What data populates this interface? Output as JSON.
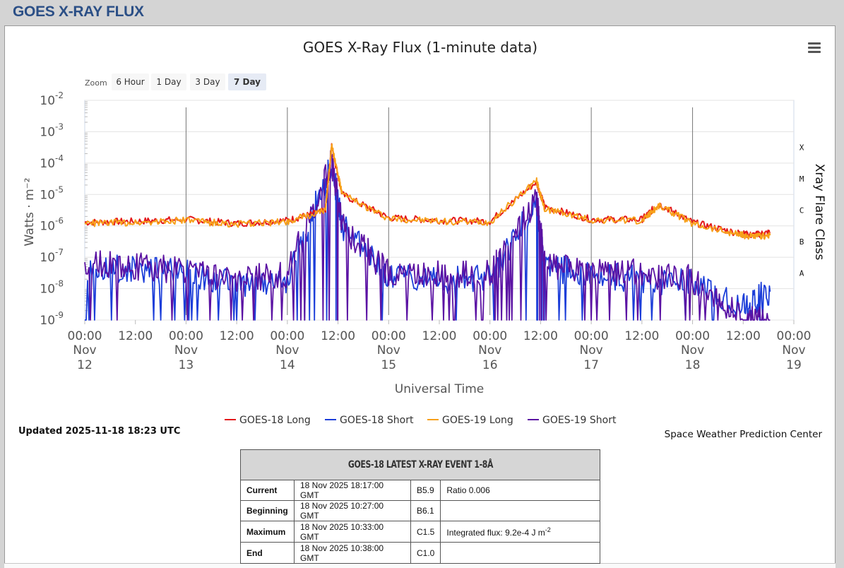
{
  "page": {
    "title": "GOES X-RAY FLUX"
  },
  "zoom": {
    "label": "Zoom",
    "buttons": [
      "6 Hour",
      "1 Day",
      "3 Day",
      "7 Day"
    ],
    "active": "7 Day"
  },
  "updated": "Updated 2025-11-18 18:23 UTC",
  "credit": "Space Weather Prediction Center",
  "colors": {
    "goes18_long": "#e3181b",
    "goes18_short": "#1c3ed9",
    "goes19_long": "#f7a01a",
    "goes19_short": "#5b12a3"
  },
  "chart_data": {
    "type": "line",
    "title": "GOES X-Ray Flux (1-minute data)",
    "xlabel": "Universal Time",
    "ylabel": "Watts · m⁻²",
    "y2label": "Xray Flare Class",
    "yscale": "log",
    "ylim": [
      1e-09,
      0.01
    ],
    "xlim": [
      "2025-11-12T00:00Z",
      "2025-11-19T00:00Z"
    ],
    "yticks": [
      {
        "base": "10",
        "exp": "-2"
      },
      {
        "base": "10",
        "exp": "-3"
      },
      {
        "base": "10",
        "exp": "-4"
      },
      {
        "base": "10",
        "exp": "-5"
      },
      {
        "base": "10",
        "exp": "-6"
      },
      {
        "base": "10",
        "exp": "-7"
      },
      {
        "base": "10",
        "exp": "-8"
      },
      {
        "base": "10",
        "exp": "-9"
      }
    ],
    "flare_classes": [
      "X",
      "M",
      "C",
      "B",
      "A"
    ],
    "xticks": [
      {
        "time": "00:00",
        "mon": "Nov",
        "day": "12"
      },
      {
        "time": "12:00",
        "mon": "",
        "day": ""
      },
      {
        "time": "00:00",
        "mon": "Nov",
        "day": "13"
      },
      {
        "time": "12:00",
        "mon": "",
        "day": ""
      },
      {
        "time": "00:00",
        "mon": "Nov",
        "day": "14"
      },
      {
        "time": "12:00",
        "mon": "",
        "day": ""
      },
      {
        "time": "00:00",
        "mon": "Nov",
        "day": "15"
      },
      {
        "time": "12:00",
        "mon": "",
        "day": ""
      },
      {
        "time": "00:00",
        "mon": "Nov",
        "day": "16"
      },
      {
        "time": "12:00",
        "mon": "",
        "day": ""
      },
      {
        "time": "00:00",
        "mon": "Nov",
        "day": "17"
      },
      {
        "time": "12:00",
        "mon": "",
        "day": ""
      },
      {
        "time": "00:00",
        "mon": "Nov",
        "day": "18"
      },
      {
        "time": "12:00",
        "mon": "",
        "day": ""
      },
      {
        "time": "00:00",
        "mon": "Nov",
        "day": "19"
      }
    ],
    "legend_position": "bottom-center",
    "series": [
      {
        "name": "GOES-18 Long",
        "x": [
          "2025-11-12T00:00Z",
          "2025-11-12T12:00Z",
          "2025-11-13T00:00Z",
          "2025-11-13T12:00Z",
          "2025-11-14T00:00Z",
          "2025-11-14T09:00Z",
          "2025-11-14T10:30Z",
          "2025-11-14T13:00Z",
          "2025-11-15T00:00Z",
          "2025-11-15T12:00Z",
          "2025-11-16T00:00Z",
          "2025-11-16T11:00Z",
          "2025-11-16T13:00Z",
          "2025-11-17T00:00Z",
          "2025-11-17T12:00Z",
          "2025-11-17T16:00Z",
          "2025-11-18T00:00Z",
          "2025-11-18T10:30Z",
          "2025-11-18T14:00Z",
          "2025-11-18T18:23Z"
        ],
        "values": [
          1.3e-06,
          1.4e-06,
          1.6e-06,
          1.2e-06,
          1.5e-06,
          3e-06,
          0.00035,
          1e-05,
          1.8e-06,
          1.5e-06,
          1.4e-06,
          2.5e-05,
          4e-06,
          1.6e-06,
          1.6e-06,
          5e-06,
          1.3e-06,
          6e-07,
          5e-07,
          6.2e-07
        ]
      },
      {
        "name": "GOES-18 Short",
        "x": [
          "2025-11-12T00:00Z",
          "2025-11-12T12:00Z",
          "2025-11-13T00:00Z",
          "2025-11-13T12:00Z",
          "2025-11-14T00:00Z",
          "2025-11-14T10:30Z",
          "2025-11-14T13:00Z",
          "2025-11-15T00:00Z",
          "2025-11-15T12:00Z",
          "2025-11-16T00:00Z",
          "2025-11-16T11:00Z",
          "2025-11-16T13:00Z",
          "2025-11-17T00:00Z",
          "2025-11-17T12:00Z",
          "2025-11-18T00:00Z",
          "2025-11-18T12:00Z",
          "2025-11-18T18:23Z"
        ],
        "values": [
          5e-08,
          4e-08,
          3e-08,
          1.5e-08,
          2e-08,
          0.0001,
          1e-06,
          2e-08,
          2e-08,
          2e-08,
          6e-06,
          5e-08,
          3e-08,
          2e-08,
          1.5e-08,
          3e-09,
          8e-09
        ]
      },
      {
        "name": "GOES-19 Long",
        "x": [
          "2025-11-12T00:00Z",
          "2025-11-12T12:00Z",
          "2025-11-13T00:00Z",
          "2025-11-13T12:00Z",
          "2025-11-14T00:00Z",
          "2025-11-14T09:00Z",
          "2025-11-14T10:30Z",
          "2025-11-14T13:00Z",
          "2025-11-15T00:00Z",
          "2025-11-15T12:00Z",
          "2025-11-16T00:00Z",
          "2025-11-16T11:00Z",
          "2025-11-16T13:00Z",
          "2025-11-17T00:00Z",
          "2025-11-17T12:00Z",
          "2025-11-17T16:00Z",
          "2025-11-18T00:00Z",
          "2025-11-18T10:30Z",
          "2025-11-18T14:00Z",
          "2025-11-18T18:23Z"
        ],
        "values": [
          1.2e-06,
          1.3e-06,
          1.5e-06,
          1.1e-06,
          1.4e-06,
          3e-06,
          0.00038,
          1e-05,
          1.7e-06,
          1.4e-06,
          1.3e-06,
          2.8e-05,
          3.5e-06,
          1.5e-06,
          1.5e-06,
          4.5e-06,
          1.2e-06,
          5.5e-07,
          4.5e-07,
          5e-07
        ]
      },
      {
        "name": "GOES-19 Short",
        "x": [
          "2025-11-12T00:00Z",
          "2025-11-12T12:00Z",
          "2025-11-13T00:00Z",
          "2025-11-13T12:00Z",
          "2025-11-14T00:00Z",
          "2025-11-14T10:30Z",
          "2025-11-14T13:00Z",
          "2025-11-15T00:00Z",
          "2025-11-15T12:00Z",
          "2025-11-16T00:00Z",
          "2025-11-16T11:00Z",
          "2025-11-16T13:00Z",
          "2025-11-17T00:00Z",
          "2025-11-17T12:00Z",
          "2025-11-18T00:00Z",
          "2025-11-18T12:00Z",
          "2025-11-18T18:23Z"
        ],
        "values": [
          6e-08,
          5e-08,
          4e-08,
          2e-08,
          3e-08,
          0.00011,
          1e-06,
          3e-08,
          3e-08,
          3e-08,
          7e-06,
          6e-08,
          4e-08,
          3e-08,
          2e-08,
          1e-09,
          1e-09
        ]
      }
    ]
  },
  "event_table": {
    "title": "GOES-18 LATEST X-RAY EVENT 1-8Å",
    "rows": [
      {
        "label": "Current",
        "time": "18 Nov 2025 18:17:00 GMT",
        "class": "B5.9",
        "note": "Ratio 0.006"
      },
      {
        "label": "Beginning",
        "time": "18 Nov 2025 10:27:00 GMT",
        "class": "B6.1",
        "note": ""
      },
      {
        "label": "Maximum",
        "time": "18 Nov 2025 10:33:00 GMT",
        "class": "C1.5",
        "note": "Integrated flux: 9.2e-4 J m",
        "note_sup": "-2"
      },
      {
        "label": "End",
        "time": "18 Nov 2025 10:38:00 GMT",
        "class": "C1.0",
        "note": ""
      }
    ]
  }
}
